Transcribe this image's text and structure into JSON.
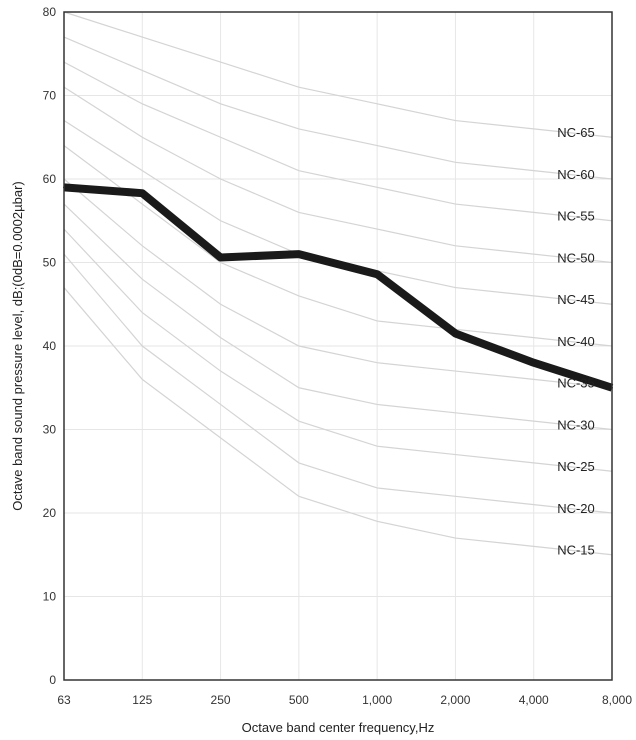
{
  "chart_data": {
    "type": "line",
    "title": "",
    "xlabel": "Octave band center frequency,Hz",
    "ylabel": "Octave band sound pressure level, dB;(0dB=0.0002µbar)",
    "categories": [
      "63",
      "125",
      "250",
      "500",
      "1,000",
      "2,000",
      "4,000",
      "8,000"
    ],
    "y_ticks": [
      "0",
      "10",
      "20",
      "30",
      "40",
      "50",
      "60",
      "70",
      "80"
    ],
    "ylim": [
      0,
      80
    ],
    "grid": true,
    "series": [
      {
        "values": [
          59,
          58.3,
          50.6,
          51,
          48.6,
          41.5,
          38,
          35
        ]
      }
    ],
    "nc_curves": [
      {
        "name": "NC-65",
        "values": [
          80,
          77,
          74,
          71,
          69,
          67,
          66,
          65
        ]
      },
      {
        "name": "NC-60",
        "values": [
          77,
          73,
          69,
          66,
          64,
          62,
          61,
          60
        ]
      },
      {
        "name": "NC-55",
        "values": [
          74,
          69,
          65,
          61,
          59,
          57,
          56,
          55
        ]
      },
      {
        "name": "NC-50",
        "values": [
          71,
          65,
          60,
          56,
          54,
          52,
          51,
          50
        ]
      },
      {
        "name": "NC-45",
        "values": [
          67,
          61,
          55,
          51,
          49,
          47,
          46,
          45
        ]
      },
      {
        "name": "NC-40",
        "values": [
          64,
          57,
          50,
          46,
          43,
          42,
          41,
          40
        ]
      },
      {
        "name": "NC-35",
        "values": [
          60,
          52,
          45,
          40,
          38,
          37,
          36,
          35
        ]
      },
      {
        "name": "NC-30",
        "values": [
          57,
          48,
          41,
          35,
          33,
          32,
          31,
          30
        ]
      },
      {
        "name": "NC-25",
        "values": [
          54,
          44,
          37,
          31,
          28,
          27,
          26,
          25
        ]
      },
      {
        "name": "NC-20",
        "values": [
          51,
          40,
          33,
          26,
          23,
          22,
          21,
          20
        ]
      },
      {
        "name": "NC-15",
        "values": [
          47,
          36,
          29,
          22,
          19,
          17,
          16,
          15
        ]
      }
    ],
    "colors": {
      "data_line": "#1a1a1a",
      "nc_curve": "#d4d4d4",
      "grid": "#e6e6e6",
      "frame": "#333333"
    }
  }
}
